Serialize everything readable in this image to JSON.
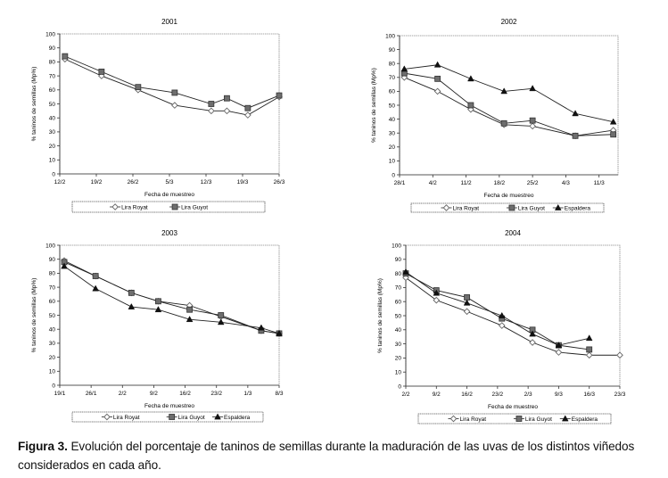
{
  "chart_data": [
    {
      "type": "line",
      "title": "2001",
      "xlabel": "Fecha de muestreo",
      "ylabel": "% taninos de semillas (Mp%)",
      "ylim": [
        0,
        100
      ],
      "yticks": [
        "0",
        "10",
        "20",
        "30",
        "40",
        "50",
        "60",
        "70",
        "80",
        "90",
        "100"
      ],
      "xticks": [
        "12/2",
        "19/2",
        "26/2",
        "5/3",
        "12/3",
        "19/3",
        "26/3"
      ],
      "xrange_days": [
        0,
        42
      ],
      "xtick_days": [
        0,
        7,
        14,
        21,
        28,
        35,
        42
      ],
      "grid": false,
      "legend_position": "bottom",
      "series": [
        {
          "name": "Lira Royat",
          "marker": "diamond-open",
          "x_days": [
            1,
            8,
            15,
            22,
            29,
            32,
            36,
            42
          ],
          "values": [
            82,
            70,
            60,
            49,
            45,
            45,
            42,
            55
          ]
        },
        {
          "name": "Lira Guyot",
          "marker": "square-filled",
          "x_days": [
            1,
            8,
            15,
            22,
            29,
            32,
            36,
            42
          ],
          "values": [
            84,
            73,
            62,
            58,
            50,
            54,
            47,
            56
          ]
        }
      ]
    },
    {
      "type": "line",
      "title": "2002",
      "xlabel": "Fecha de muestreo",
      "ylabel": "% taninos de semillas (Mp%)",
      "ylim": [
        0,
        100
      ],
      "yticks": [
        "0",
        "10",
        "20",
        "30",
        "40",
        "50",
        "60",
        "70",
        "80",
        "90",
        "100"
      ],
      "xticks": [
        "28/1",
        "4/2",
        "11/2",
        "18/2",
        "25/2",
        "4/3",
        "11/3"
      ],
      "xrange_days": [
        0,
        46
      ],
      "xtick_days": [
        0,
        7,
        14,
        21,
        28,
        35,
        42
      ],
      "grid": false,
      "legend_position": "bottom",
      "series": [
        {
          "name": "Lira Royat",
          "marker": "diamond-open",
          "x_days": [
            1,
            8,
            15,
            22,
            28,
            37,
            45
          ],
          "values": [
            70,
            60,
            47,
            36,
            35,
            28,
            32
          ]
        },
        {
          "name": "Lira Guyot",
          "marker": "square-filled",
          "x_days": [
            1,
            8,
            15,
            22,
            28,
            37,
            45
          ],
          "values": [
            73,
            69,
            50,
            37,
            39,
            28,
            29
          ]
        },
        {
          "name": "Espaldera",
          "marker": "triangle-filled",
          "x_days": [
            1,
            8,
            15,
            22,
            28,
            37,
            45
          ],
          "values": [
            76,
            79,
            69,
            60,
            62,
            44,
            38
          ]
        }
      ]
    },
    {
      "type": "line",
      "title": "2003",
      "xlabel": "Fecha de muestreo",
      "ylabel": "% taninos de semillas (Mp%)",
      "ylim": [
        0,
        100
      ],
      "yticks": [
        "0",
        "10",
        "20",
        "30",
        "40",
        "50",
        "60",
        "70",
        "80",
        "90",
        "100"
      ],
      "xticks": [
        "19/1",
        "26/1",
        "2/2",
        "9/2",
        "16/2",
        "23/2",
        "1/3",
        "8/3"
      ],
      "xrange_days": [
        0,
        49
      ],
      "xtick_days": [
        0,
        7,
        14,
        21,
        28,
        35,
        42,
        49
      ],
      "grid": false,
      "legend_position": "bottom",
      "series": [
        {
          "name": "Lira Royat",
          "marker": "diamond-open",
          "x_days": [
            1,
            8,
            16,
            22,
            29,
            36,
            45,
            49
          ],
          "values": [
            89,
            78,
            66,
            60,
            57,
            49,
            39,
            37
          ]
        },
        {
          "name": "Lira Guyot",
          "marker": "square-filled",
          "x_days": [
            1,
            8,
            16,
            22,
            29,
            36,
            45,
            49
          ],
          "values": [
            88,
            78,
            66,
            60,
            54,
            50,
            39,
            37
          ]
        },
        {
          "name": "Espaldera",
          "marker": "triangle-filled",
          "x_days": [
            1,
            8,
            16,
            22,
            29,
            36,
            45,
            49
          ],
          "values": [
            85,
            69,
            56,
            54,
            47,
            45,
            41,
            37
          ]
        }
      ]
    },
    {
      "type": "line",
      "title": "2004",
      "xlabel": "Fecha de muestreo",
      "ylabel": "% taninos de semillas (Mp%)",
      "ylim": [
        0,
        100
      ],
      "yticks": [
        "0",
        "10",
        "20",
        "30",
        "40",
        "50",
        "60",
        "70",
        "80",
        "90",
        "100"
      ],
      "xticks": [
        "2/2",
        "9/2",
        "16/2",
        "23/2",
        "2/3",
        "9/3",
        "16/3",
        "23/3"
      ],
      "xrange_days": [
        0,
        49
      ],
      "xtick_days": [
        0,
        7,
        14,
        21,
        28,
        35,
        42,
        49
      ],
      "grid": false,
      "legend_position": "bottom",
      "series": [
        {
          "name": "Lira Royat",
          "marker": "diamond-open",
          "x_days": [
            0,
            7,
            14,
            22,
            29,
            35,
            42,
            49
          ],
          "values": [
            77,
            61,
            53,
            43,
            31,
            24,
            22,
            22
          ]
        },
        {
          "name": "Lira Guyot",
          "marker": "square-filled",
          "x_days": [
            0,
            7,
            14,
            22,
            29,
            35,
            42
          ],
          "values": [
            80,
            68,
            63,
            48,
            40,
            29,
            26
          ]
        },
        {
          "name": "Espaldera",
          "marker": "triangle-filled",
          "x_days": [
            0,
            7,
            14,
            22,
            29,
            35,
            42
          ],
          "values": [
            81,
            66,
            59,
            50,
            37,
            29,
            34
          ]
        }
      ]
    }
  ],
  "caption": {
    "label": "Figura 3.",
    "text": " Evolución del porcentaje de taninos de semillas durante la maduración de las uvas de los distintos viñedos considerados en cada año."
  }
}
